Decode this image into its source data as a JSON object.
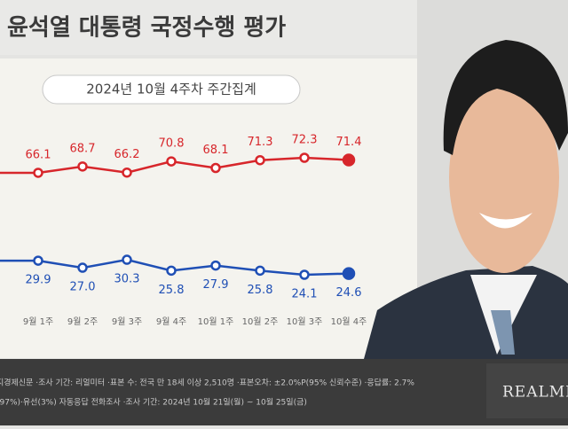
{
  "header": {
    "title": "윤석열 대통령 국정수행 평가"
  },
  "chart_data": {
    "type": "line",
    "subtitle": "2024년 10월 4주차 주간집계",
    "categories": [
      "9월 1주",
      "9월 2주",
      "9월 3주",
      "9월 4주",
      "10월 1주",
      "10월 2주",
      "10월 3주",
      "10월 4주"
    ],
    "series": [
      {
        "color": "#d7262b",
        "values": [
          66.1,
          68.7,
          66.2,
          70.8,
          68.1,
          71.3,
          72.3,
          71.4
        ]
      },
      {
        "color": "#1f4fb5",
        "values": [
          29.9,
          27.0,
          30.3,
          25.8,
          27.9,
          25.8,
          24.1,
          24.6
        ],
        "value_labels": [
          "29.9",
          "27.0",
          "30.3",
          "25.8",
          "27.9",
          "25.8",
          "24.1",
          "24.6"
        ]
      }
    ]
  },
  "footer": {
    "lines": [
      "지경제신문 ·조사 기간: 리얼미터 ·표본 수: 전국 만 18세 이상 2,510명 ·표본오차: ±2.0%P(95% 신뢰수준) ·응답률: 2.7%",
      "(97%)·유선(3%) 자동응답 전화조사 ·조사 기간: 2024년 10월 21일(월) ~ 10월 25일(금)"
    ],
    "brand": "REALMETER"
  }
}
